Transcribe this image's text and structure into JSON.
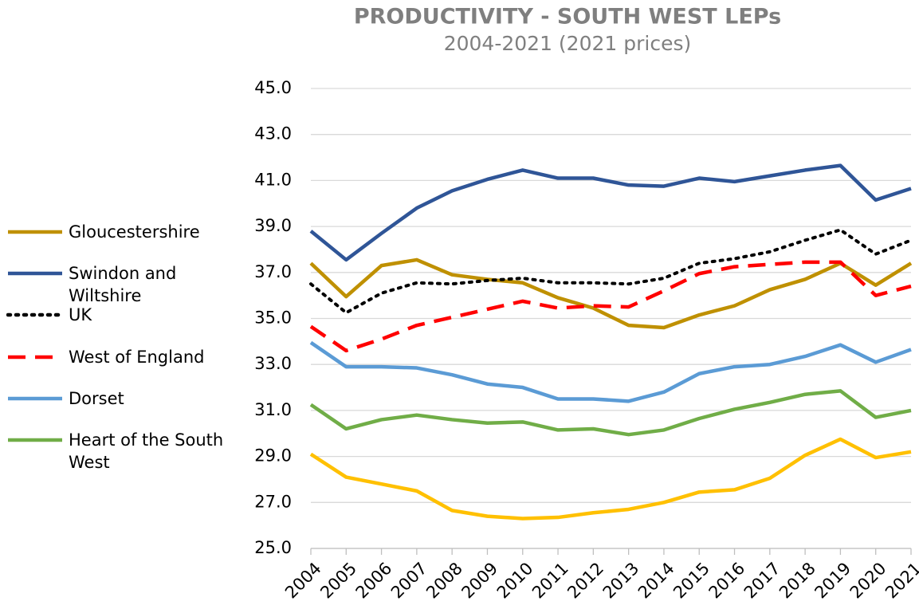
{
  "chart_data": {
    "type": "line",
    "title": "PRODUCTIVITY - SOUTH WEST LEPs",
    "subtitle": "2004-2021 (2021 prices)",
    "categories": [
      "2004",
      "2005",
      "2006",
      "2007",
      "2008",
      "2009",
      "2010",
      "2011",
      "2012",
      "2013",
      "2014",
      "2015",
      "2016",
      "2017",
      "2018",
      "2019",
      "2020",
      "2021"
    ],
    "ylim": [
      25,
      45
    ],
    "yticks": [
      {
        "value": 25,
        "label": "25.0"
      },
      {
        "value": 27,
        "label": "27.0"
      },
      {
        "value": 29,
        "label": "29.0"
      },
      {
        "value": 31,
        "label": "31.0"
      },
      {
        "value": 33,
        "label": "33.0"
      },
      {
        "value": 35,
        "label": "35.0"
      },
      {
        "value": 37,
        "label": "37.0"
      },
      {
        "value": 39,
        "label": "39.0"
      },
      {
        "value": 41,
        "label": "41.0"
      },
      {
        "value": 43,
        "label": "43.0"
      },
      {
        "value": 45,
        "label": "45.0"
      }
    ],
    "grid": true,
    "legend": "left",
    "series": [
      {
        "name": "Gloucestershire",
        "color": "#bf9000",
        "dash": "solid",
        "values": [
          37.4,
          35.95,
          37.3,
          37.55,
          36.9,
          36.7,
          36.55,
          35.9,
          35.45,
          34.7,
          34.6,
          35.15,
          35.55,
          36.25,
          36.7,
          37.4,
          36.45,
          37.4
        ]
      },
      {
        "name": "Swindon and Wiltshire",
        "color": "#2f5597",
        "dash": "solid",
        "values": [
          38.8,
          37.55,
          38.7,
          39.8,
          40.55,
          41.05,
          41.45,
          41.1,
          41.1,
          40.8,
          40.75,
          41.1,
          40.95,
          41.2,
          41.45,
          41.65,
          40.15,
          40.65
        ]
      },
      {
        "name": "UK",
        "color": "#000000",
        "dash": "dotted",
        "values": [
          36.5,
          35.25,
          36.1,
          36.55,
          36.5,
          36.65,
          36.75,
          36.55,
          36.55,
          36.5,
          36.75,
          37.4,
          37.6,
          37.9,
          38.4,
          38.85,
          37.8,
          38.4
        ]
      },
      {
        "name": "West of England",
        "color": "#ff0000",
        "dash": "dashed",
        "values": [
          34.65,
          33.6,
          34.1,
          34.7,
          35.05,
          35.4,
          35.75,
          35.45,
          35.55,
          35.5,
          36.2,
          36.95,
          37.25,
          37.35,
          37.45,
          37.45,
          36.0,
          36.4
        ]
      },
      {
        "name": "Dorset",
        "color": "#5b9bd5",
        "dash": "solid",
        "values": [
          33.95,
          32.9,
          32.9,
          32.85,
          32.55,
          32.15,
          32.0,
          31.5,
          31.5,
          31.4,
          31.8,
          32.6,
          32.9,
          33.0,
          33.35,
          33.85,
          33.1,
          33.65
        ]
      },
      {
        "name": "Heart of the South West",
        "color": "#70ad47",
        "dash": "solid",
        "values": [
          31.25,
          30.2,
          30.6,
          30.8,
          30.6,
          30.45,
          30.5,
          30.15,
          30.2,
          29.95,
          30.15,
          30.65,
          31.05,
          31.35,
          31.7,
          31.85,
          30.7,
          31.0
        ]
      },
      {
        "color": "#ffc000",
        "dash": "solid",
        "values": [
          29.1,
          28.1,
          27.8,
          27.5,
          26.65,
          26.4,
          26.3,
          26.35,
          26.55,
          26.7,
          27.0,
          27.45,
          27.55,
          28.05,
          29.05,
          29.75,
          28.95,
          29.2
        ]
      }
    ]
  }
}
